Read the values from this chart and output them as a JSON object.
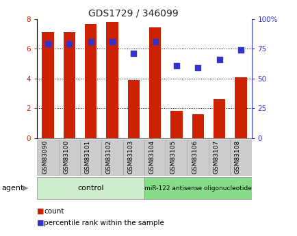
{
  "title": "GDS1729 / 346099",
  "categories": [
    "GSM83090",
    "GSM83100",
    "GSM83101",
    "GSM83102",
    "GSM83103",
    "GSM83104",
    "GSM83105",
    "GSM83106",
    "GSM83107",
    "GSM83108"
  ],
  "bar_values": [
    7.1,
    7.1,
    7.65,
    7.8,
    3.9,
    7.45,
    1.85,
    1.6,
    2.6,
    4.1
  ],
  "dot_values": [
    79,
    79,
    81,
    81,
    71,
    81,
    61,
    59,
    66,
    74
  ],
  "bar_color": "#cc2200",
  "dot_color": "#3333cc",
  "control_label": "control",
  "treatment_label": "miR-122 antisense oligonucleotide",
  "control_count": 5,
  "agent_label": "agent",
  "legend_count_label": "count",
  "legend_pct_label": "percentile rank within the sample",
  "control_bg": "#cceecc",
  "treatment_bg": "#88dd88",
  "label_bg": "#cccccc",
  "title_fontsize": 10,
  "bar_fontsize": 7.5,
  "label_fontsize": 6.5,
  "agent_fontsize": 8,
  "legend_fontsize": 7.5
}
